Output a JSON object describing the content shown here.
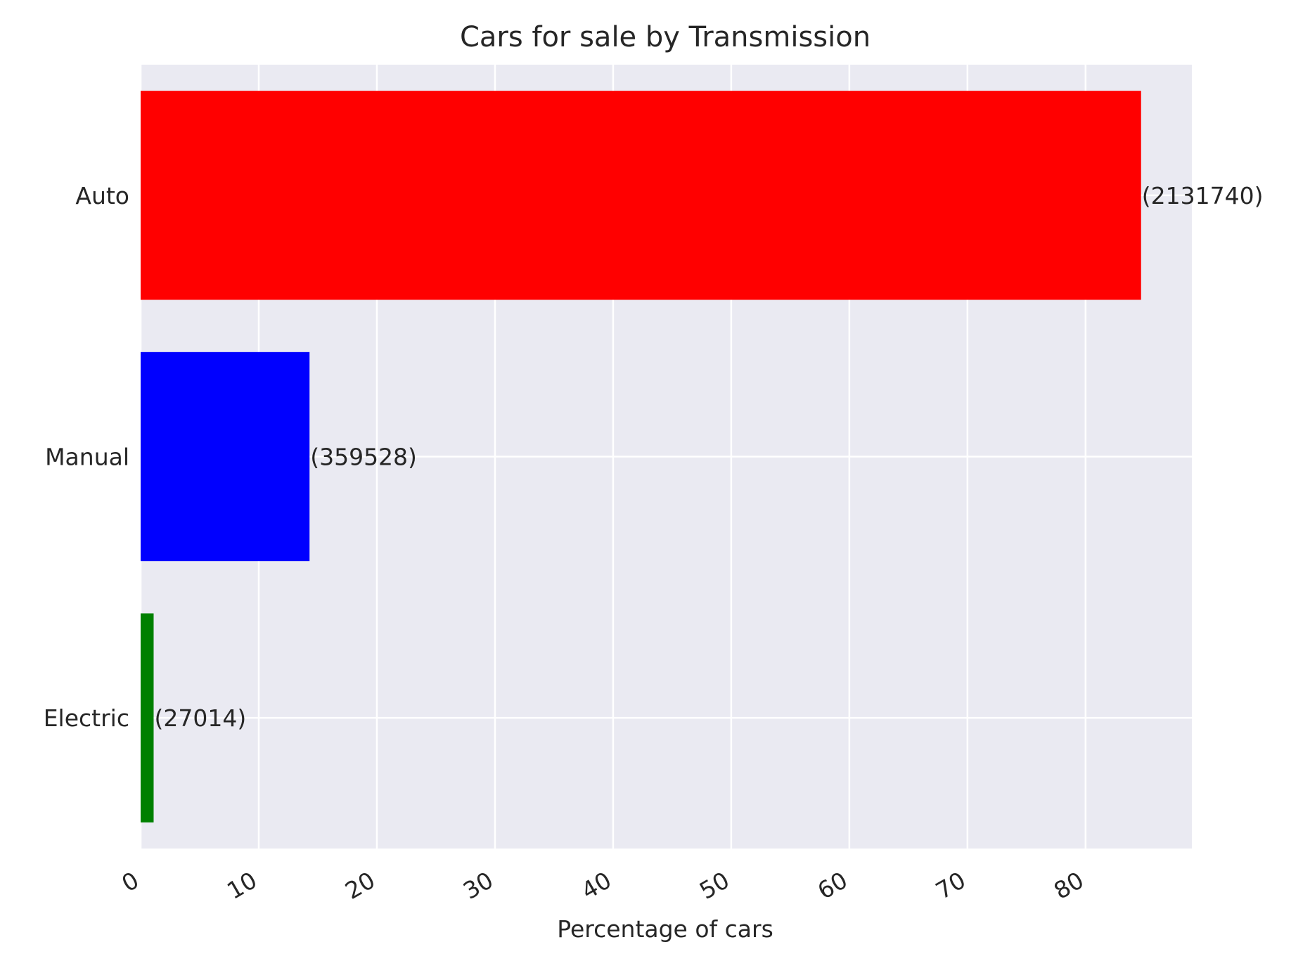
{
  "chart_data": {
    "type": "bar",
    "orientation": "horizontal",
    "title": "Cars for sale by Transmission",
    "xlabel": "Percentage of cars",
    "ylabel": "",
    "xlim": [
      0,
      89
    ],
    "xticks": [
      0,
      10,
      20,
      30,
      40,
      50,
      60,
      70,
      80
    ],
    "grid": true,
    "background_color": "#eaeaf2",
    "categories": [
      "Auto",
      "Manual",
      "Electric"
    ],
    "values": [
      84.7,
      14.3,
      1.1
    ],
    "counts": [
      2131740,
      359528,
      27014
    ],
    "data_labels": [
      "(2131740)",
      "(359528)",
      "(27014)"
    ],
    "colors": [
      "#ff0000",
      "#0000ff",
      "#008000"
    ]
  }
}
